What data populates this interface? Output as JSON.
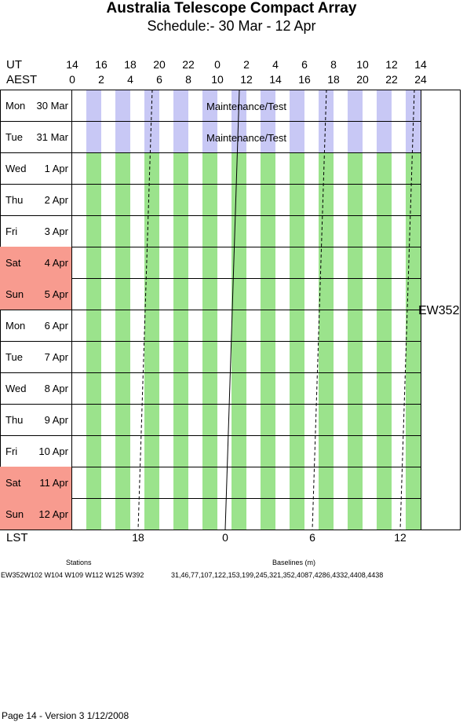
{
  "title": "Australia Telescope Compact Array",
  "subtitle": "Schedule:- 30 Mar - 12 Apr",
  "axis": {
    "ut_label": "UT",
    "aest_label": "AEST",
    "ut_ticks": [
      "14",
      "16",
      "18",
      "20",
      "22",
      "0",
      "2",
      "4",
      "6",
      "8",
      "10",
      "12",
      "14"
    ],
    "aest_ticks": [
      "0",
      "2",
      "4",
      "6",
      "8",
      "10",
      "12",
      "14",
      "16",
      "18",
      "20",
      "22",
      "24"
    ],
    "lst_label": "LST",
    "lst_ticks": [
      "18",
      "0",
      "6",
      "12"
    ]
  },
  "days": [
    {
      "name": "Mon",
      "date": "30 Mar",
      "weekend": false,
      "block": "Maintenance/Test"
    },
    {
      "name": "Tue",
      "date": "31 Mar",
      "weekend": false,
      "block": "Maintenance/Test"
    },
    {
      "name": "Wed",
      "date": "1 Apr",
      "weekend": false,
      "block": "EW352"
    },
    {
      "name": "Thu",
      "date": "2 Apr",
      "weekend": false,
      "block": "EW352"
    },
    {
      "name": "Fri",
      "date": "3 Apr",
      "weekend": false,
      "block": "EW352"
    },
    {
      "name": "Sat",
      "date": "4 Apr",
      "weekend": true,
      "block": "EW352"
    },
    {
      "name": "Sun",
      "date": "5 Apr",
      "weekend": true,
      "block": "EW352"
    },
    {
      "name": "Mon",
      "date": "6 Apr",
      "weekend": false,
      "block": "EW352"
    },
    {
      "name": "Tue",
      "date": "7 Apr",
      "weekend": false,
      "block": "EW352"
    },
    {
      "name": "Wed",
      "date": "8 Apr",
      "weekend": false,
      "block": "EW352"
    },
    {
      "name": "Thu",
      "date": "9 Apr",
      "weekend": false,
      "block": "EW352"
    },
    {
      "name": "Fri",
      "date": "10 Apr",
      "weekend": false,
      "block": "EW352"
    },
    {
      "name": "Sat",
      "date": "11 Apr",
      "weekend": true,
      "block": "EW352"
    },
    {
      "name": "Sun",
      "date": "12 Apr",
      "weekend": true,
      "block": "EW352"
    }
  ],
  "maintenance_label": "Maintenance/Test",
  "project_label": "EW352",
  "colors": {
    "maintenance": "#c8c8f5",
    "observing": "#9be38c",
    "weekend": "#f89b8f"
  },
  "stations": {
    "heading": "Stations",
    "value": "EW352W102 W104 W109 W112 W125 W392"
  },
  "baselines": {
    "heading": "Baselines (m)",
    "value": "31,46,77,107,122,153,199,245,321,352,4087,4286,4332,4408,4438"
  },
  "footer": "Page 14 - Version 3  1/12/2008"
}
